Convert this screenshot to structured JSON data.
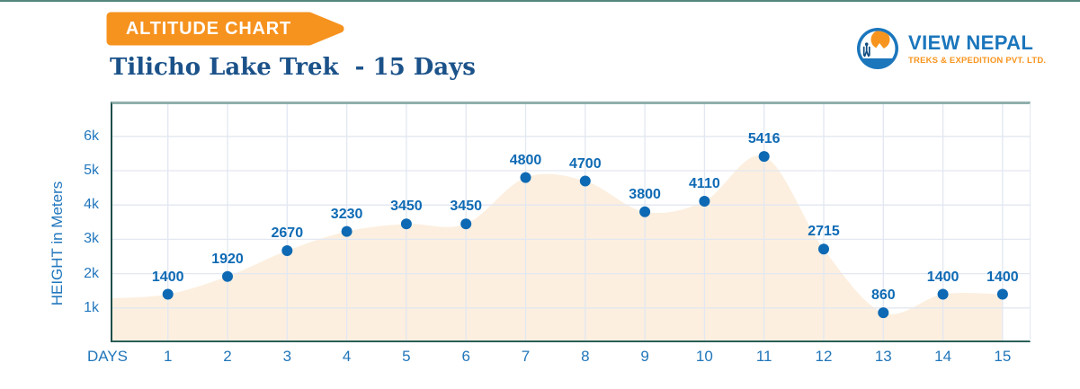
{
  "banner": {
    "label": "ALTITUDE CHART"
  },
  "logo": {
    "name": "VIEW NEPAL",
    "tagline": "TREKS & EXPEDITION PVT. LTD."
  },
  "title": "Tilicho Lake Trek  - 15 Days",
  "chart_data": {
    "type": "area",
    "title": "Tilicho Lake Trek - 15 Days",
    "xlabel": "DAYS",
    "ylabel": "HEIGHT in Meters",
    "x": [
      1,
      2,
      3,
      4,
      5,
      6,
      7,
      8,
      9,
      10,
      11,
      12,
      13,
      14,
      15
    ],
    "values": [
      1400,
      1920,
      2670,
      3230,
      3450,
      3450,
      4800,
      4700,
      3800,
      4110,
      5416,
      2715,
      860,
      1400,
      1400
    ],
    "point_labels": [
      "1400",
      "1920",
      "2670",
      "3230",
      "3450",
      "3450",
      "4800",
      "4700",
      "3800",
      "4110",
      "5416",
      "2715",
      "860",
      "1400",
      "1400"
    ],
    "ytick_labels": [
      "1k",
      "2k",
      "3k",
      "4k",
      "5k",
      "6k"
    ],
    "ytick_values": [
      1000,
      2000,
      3000,
      4000,
      5000,
      6000
    ],
    "ylim": [
      0,
      7000
    ],
    "grid": true,
    "legend": false
  },
  "colors": {
    "accent_orange": "#F6921E",
    "brand_blue": "#1B76BC",
    "logo_orange": "#F7941D",
    "logo_hiker_navy": "#0F4C81",
    "title_navy": "#1B5289",
    "dot_blue": "#0D69B3",
    "point_label_blue": "#0E6AB4",
    "axis_blue": "#2277BD",
    "area_fill": "#FCEFDF",
    "gridline": "#E2E7F1",
    "border_teal_dark": "#1F4F4A",
    "border_teal_light": "#8FAFAB",
    "top_strip_teal": "#54867E"
  }
}
